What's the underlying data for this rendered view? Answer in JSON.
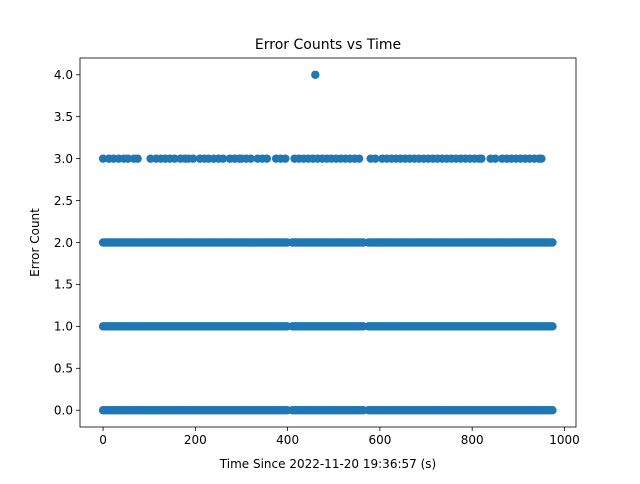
{
  "chart_data": {
    "type": "scatter",
    "title": "Error Counts vs Time",
    "xlabel": "Time Since 2022-11-20 19:36:57 (s)",
    "ylabel": "Error Count",
    "xlim": [
      -50,
      1025
    ],
    "ylim": [
      -0.2,
      4.2
    ],
    "grid": false,
    "color": "#1f77b4",
    "xticks": [
      0,
      200,
      400,
      600,
      800,
      1000
    ],
    "xtick_labels": [
      "0",
      "200",
      "400",
      "600",
      "800",
      "1000"
    ],
    "yticks": [
      0,
      0.5,
      1,
      1.5,
      2,
      2.5,
      3,
      3.5,
      4
    ],
    "ytick_labels": [
      "0.0",
      "0.5",
      "1.0",
      "1.5",
      "2.0",
      "2.5",
      "3.0",
      "3.5",
      "4.0"
    ],
    "series": [
      {
        "y": 0,
        "x_ranges": [
          [
            0,
            400
          ],
          [
            410,
            565
          ],
          [
            575,
            975
          ]
        ]
      },
      {
        "y": 1,
        "x_ranges": [
          [
            0,
            400
          ],
          [
            410,
            565
          ],
          [
            575,
            975
          ]
        ]
      },
      {
        "y": 2,
        "x_ranges": [
          [
            0,
            400
          ],
          [
            410,
            565
          ],
          [
            575,
            975
          ]
        ]
      },
      {
        "y": 3,
        "x": [
          0,
          13,
          23,
          34,
          45,
          54,
          67,
          75,
          103,
          115,
          125,
          135,
          145,
          155,
          168,
          178,
          185,
          195,
          210,
          220,
          229,
          240,
          250,
          260,
          275,
          285,
          295,
          300,
          310,
          320,
          335,
          345,
          355,
          375,
          385,
          395,
          415,
          425,
          435,
          445,
          455,
          465,
          475,
          485,
          495,
          505,
          515,
          525,
          535,
          545,
          555,
          580,
          590,
          605,
          615,
          625,
          635,
          645,
          655,
          665,
          675,
          685,
          695,
          705,
          715,
          725,
          735,
          745,
          755,
          765,
          775,
          785,
          795,
          805,
          815,
          820,
          840,
          850,
          865,
          875,
          885,
          895,
          905,
          915,
          925,
          935,
          945,
          950
        ]
      },
      {
        "y": 4,
        "x": [
          460
        ]
      }
    ]
  }
}
